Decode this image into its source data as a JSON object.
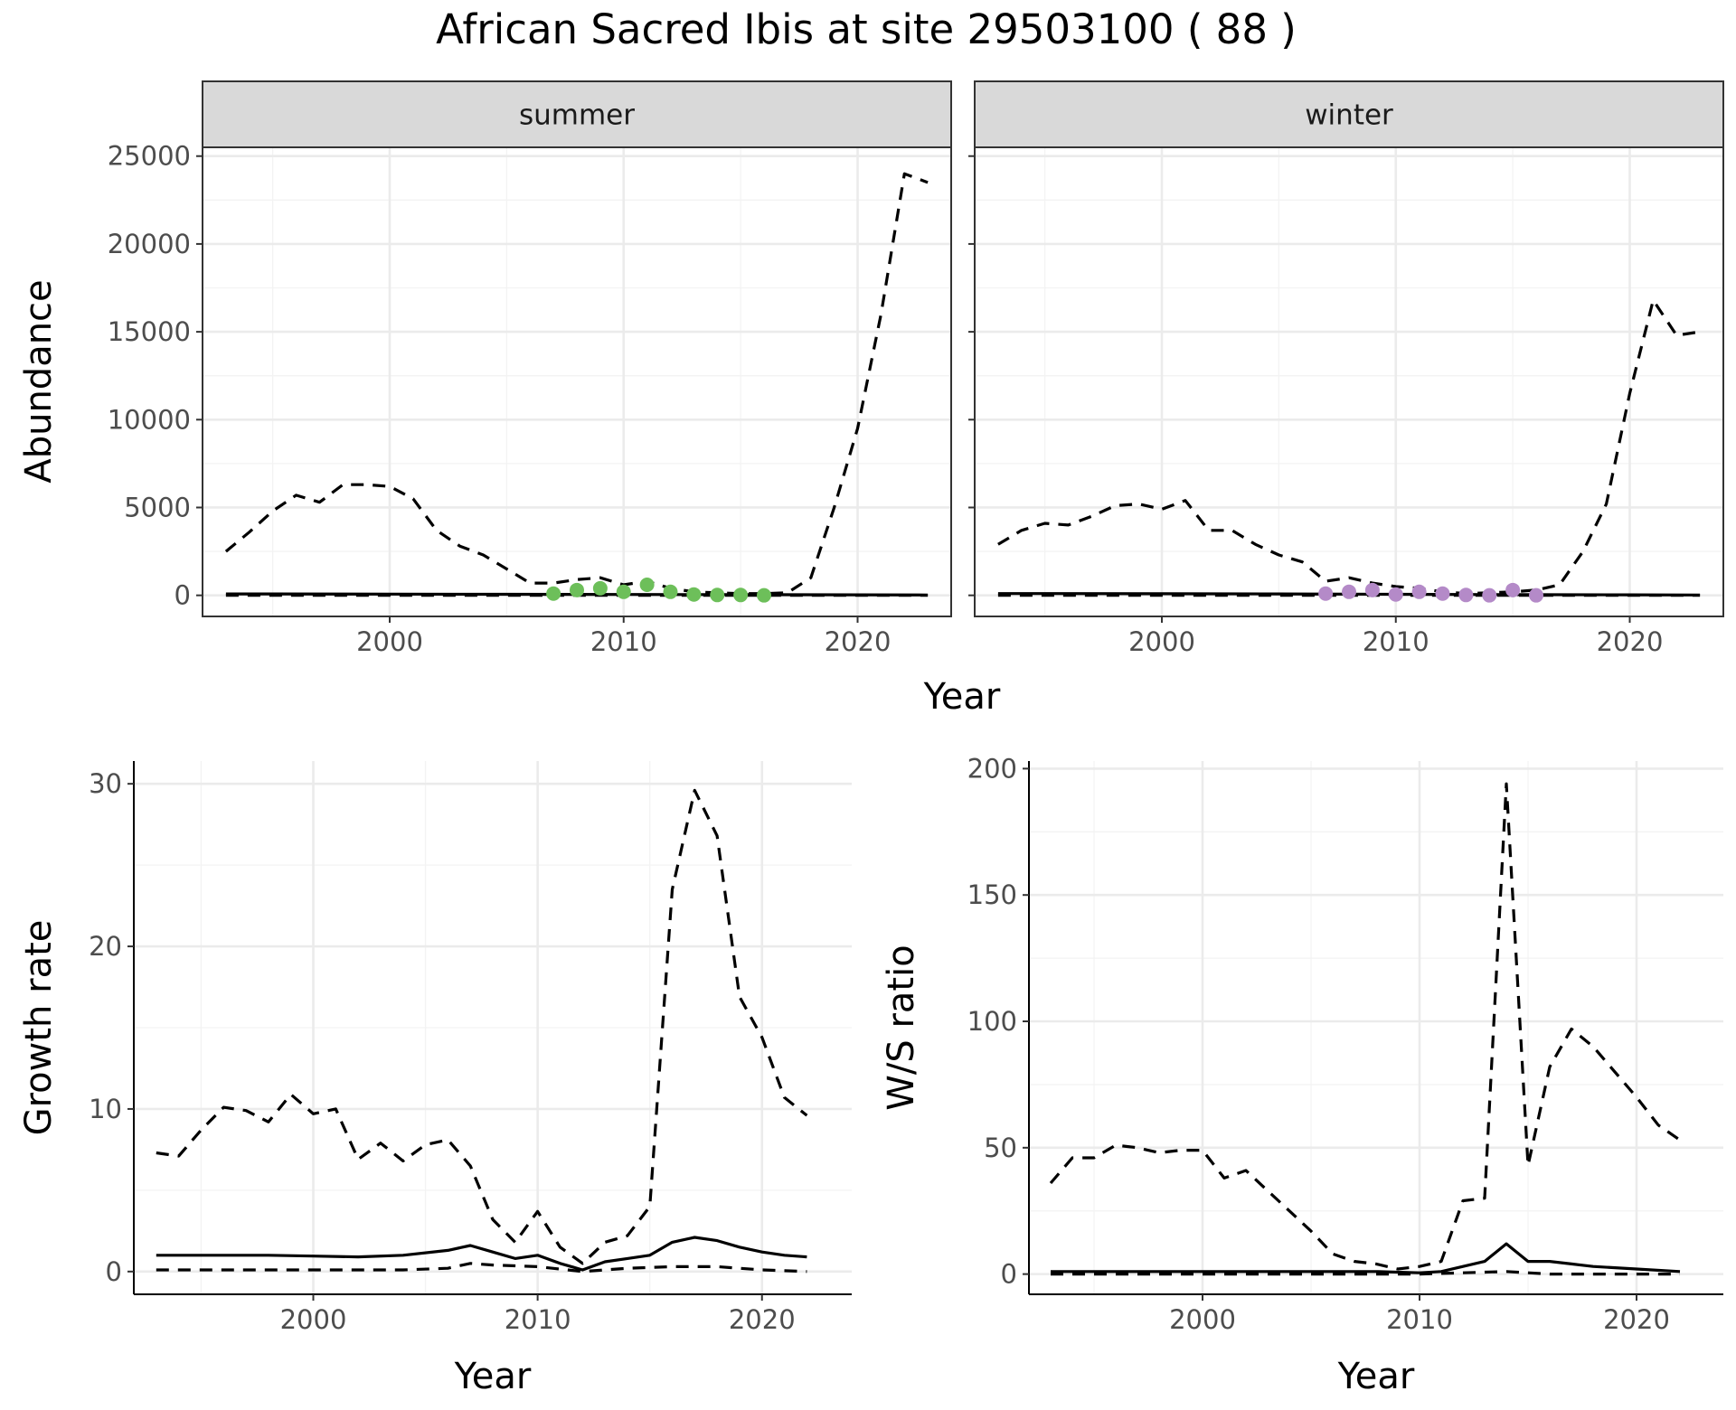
{
  "page_title": "African Sacred Ibis at site 29503100 ( 88 )",
  "colors": {
    "summer_points": "#6dbf5a",
    "winter_points": "#b48ac8",
    "line": "#000000"
  },
  "chart_data": [
    {
      "id": "abundance",
      "type": "line",
      "facets": [
        "summer",
        "winter"
      ],
      "xlabel": "Year",
      "ylabel": "Abundance",
      "xlim": [
        1992,
        2024
      ],
      "ylim": [
        -1200,
        25500
      ],
      "x_breaks": [
        2000,
        2010,
        2020
      ],
      "y_breaks": [
        0,
        5000,
        10000,
        15000,
        20000,
        25000
      ],
      "panels": [
        {
          "facet": "summer",
          "point_color": "#6dbf5a",
          "series": [
            {
              "name": "upper",
              "style": "dashed",
              "x": [
                1993,
                1994,
                1995,
                1996,
                1997,
                1998,
                1999,
                2000,
                2001,
                2002,
                2003,
                2004,
                2005,
                2006,
                2007,
                2008,
                2009,
                2010,
                2011,
                2012,
                2013,
                2014,
                2015,
                2016,
                2017,
                2018,
                2019,
                2020,
                2021,
                2022,
                2023
              ],
              "y": [
                2500,
                3600,
                4800,
                5700,
                5300,
                6300,
                6300,
                6200,
                5500,
                3700,
                2800,
                2300,
                1500,
                700,
                700,
                900,
                1000,
                600,
                800,
                400,
                200,
                150,
                100,
                100,
                150,
                1000,
                5000,
                9500,
                16000,
                24000,
                23500
              ]
            },
            {
              "name": "fit",
              "style": "solid",
              "x": [
                1993,
                1995,
                2000,
                2005,
                2010,
                2015,
                2020,
                2023
              ],
              "y": [
                80,
                80,
                70,
                60,
                50,
                40,
                30,
                20
              ]
            },
            {
              "name": "lower",
              "style": "dashed",
              "x": [
                1993,
                1995,
                2000,
                2005,
                2010,
                2015,
                2020,
                2023
              ],
              "y": [
                0,
                0,
                0,
                0,
                0,
                0,
                0,
                0
              ]
            }
          ],
          "points": {
            "x": [
              2007,
              2008,
              2009,
              2010,
              2011,
              2012,
              2013,
              2014,
              2015,
              2016
            ],
            "y": [
              100,
              300,
              400,
              200,
              600,
              200,
              50,
              20,
              20,
              0
            ]
          }
        },
        {
          "facet": "winter",
          "point_color": "#b48ac8",
          "series": [
            {
              "name": "upper",
              "style": "dashed",
              "x": [
                1993,
                1994,
                1995,
                1996,
                1997,
                1998,
                1999,
                2000,
                2001,
                2002,
                2003,
                2004,
                2005,
                2006,
                2007,
                2008,
                2009,
                2010,
                2011,
                2012,
                2013,
                2014,
                2015,
                2016,
                2017,
                2018,
                2019,
                2020,
                2021,
                2022,
                2023
              ],
              "y": [
                2900,
                3700,
                4100,
                4000,
                4500,
                5100,
                5200,
                4900,
                5400,
                3700,
                3700,
                2900,
                2300,
                1900,
                800,
                1000,
                700,
                500,
                400,
                200,
                100,
                150,
                200,
                300,
                600,
                2500,
                5200,
                11500,
                16800,
                14800,
                15000
              ]
            },
            {
              "name": "fit",
              "style": "solid",
              "x": [
                1993,
                1995,
                2000,
                2005,
                2010,
                2015,
                2020,
                2023
              ],
              "y": [
                100,
                100,
                90,
                80,
                60,
                40,
                30,
                20
              ]
            },
            {
              "name": "lower",
              "style": "dashed",
              "x": [
                1993,
                1995,
                2000,
                2005,
                2010,
                2015,
                2020,
                2023
              ],
              "y": [
                0,
                0,
                0,
                0,
                0,
                0,
                0,
                0
              ]
            }
          ],
          "points": {
            "x": [
              2007,
              2008,
              2009,
              2010,
              2011,
              2012,
              2013,
              2014,
              2015,
              2016
            ],
            "y": [
              100,
              200,
              300,
              50,
              200,
              100,
              20,
              0,
              300,
              0
            ]
          }
        }
      ]
    },
    {
      "id": "growth",
      "type": "line",
      "xlabel": "Year",
      "ylabel": "Growth rate",
      "xlim": [
        1992,
        2024
      ],
      "ylim": [
        -1.4,
        31.4
      ],
      "x_breaks": [
        2000,
        2010,
        2020
      ],
      "y_breaks": [
        0,
        10,
        20,
        30
      ],
      "series": [
        {
          "name": "upper",
          "style": "dashed",
          "x": [
            1993,
            1994,
            1995,
            1996,
            1997,
            1998,
            1999,
            2000,
            2001,
            2002,
            2003,
            2004,
            2005,
            2006,
            2007,
            2008,
            2009,
            2010,
            2011,
            2012,
            2013,
            2014,
            2015,
            2016,
            2017,
            2018,
            2019,
            2020,
            2021,
            2022
          ],
          "y": [
            7.3,
            7.1,
            8.7,
            10.1,
            9.9,
            9.2,
            10.9,
            9.7,
            10.0,
            6.9,
            7.9,
            6.8,
            7.8,
            8.1,
            6.5,
            3.2,
            1.8,
            3.7,
            1.5,
            0.5,
            1.8,
            2.2,
            4.0,
            23.5,
            29.6,
            26.8,
            16.9,
            14.4,
            10.7,
            9.6
          ]
        },
        {
          "name": "fit",
          "style": "solid",
          "x": [
            1993,
            1995,
            1998,
            2000,
            2002,
            2004,
            2006,
            2007,
            2008,
            2009,
            2010,
            2011,
            2012,
            2013,
            2014,
            2015,
            2016,
            2017,
            2018,
            2019,
            2020,
            2021,
            2022
          ],
          "y": [
            1.0,
            1.0,
            1.0,
            0.95,
            0.9,
            1.0,
            1.3,
            1.6,
            1.2,
            0.8,
            1.0,
            0.5,
            0.1,
            0.6,
            0.8,
            1.0,
            1.8,
            2.1,
            1.9,
            1.5,
            1.2,
            1.0,
            0.9
          ]
        },
        {
          "name": "lower",
          "style": "dashed",
          "x": [
            1993,
            1996,
            2000,
            2004,
            2006,
            2007,
            2008,
            2010,
            2012,
            2014,
            2016,
            2018,
            2020,
            2022
          ],
          "y": [
            0.1,
            0.1,
            0.1,
            0.1,
            0.2,
            0.5,
            0.4,
            0.3,
            0.0,
            0.2,
            0.3,
            0.3,
            0.1,
            0.0
          ]
        }
      ]
    },
    {
      "id": "ws_ratio",
      "type": "line",
      "xlabel": "Year",
      "ylabel": "W/S ratio",
      "xlim": [
        1992,
        2024
      ],
      "ylim": [
        -8,
        203
      ],
      "x_breaks": [
        2000,
        2010,
        2020
      ],
      "y_breaks": [
        0,
        50,
        100,
        150,
        200
      ],
      "series": [
        {
          "name": "upper",
          "style": "dashed",
          "x": [
            1993,
            1994,
            1995,
            1996,
            1997,
            1998,
            1999,
            2000,
            2001,
            2002,
            2003,
            2004,
            2005,
            2006,
            2007,
            2008,
            2009,
            2010,
            2011,
            2012,
            2013,
            2014,
            2015,
            2016,
            2017,
            2018,
            2019,
            2020,
            2021,
            2022
          ],
          "y": [
            36,
            46,
            46,
            51,
            50,
            48,
            49,
            49,
            38,
            41,
            33,
            25,
            17,
            8,
            5,
            4,
            2,
            3,
            5,
            29,
            30,
            194,
            43,
            82,
            97,
            90,
            80,
            70,
            59,
            53
          ]
        },
        {
          "name": "fit",
          "style": "solid",
          "x": [
            1993,
            1995,
            2000,
            2005,
            2008,
            2010,
            2011,
            2012,
            2013,
            2014,
            2015,
            2016,
            2017,
            2018,
            2020,
            2022
          ],
          "y": [
            1,
            1,
            1,
            1,
            1,
            0.5,
            1,
            3,
            5,
            12,
            5,
            5,
            4,
            3,
            2,
            1
          ]
        },
        {
          "name": "lower",
          "style": "dashed",
          "x": [
            1993,
            1996,
            2000,
            2005,
            2010,
            2014,
            2016,
            2018,
            2020,
            2022
          ],
          "y": [
            0,
            0,
            0,
            0,
            0,
            1,
            0,
            0,
            0,
            0
          ]
        }
      ]
    }
  ]
}
